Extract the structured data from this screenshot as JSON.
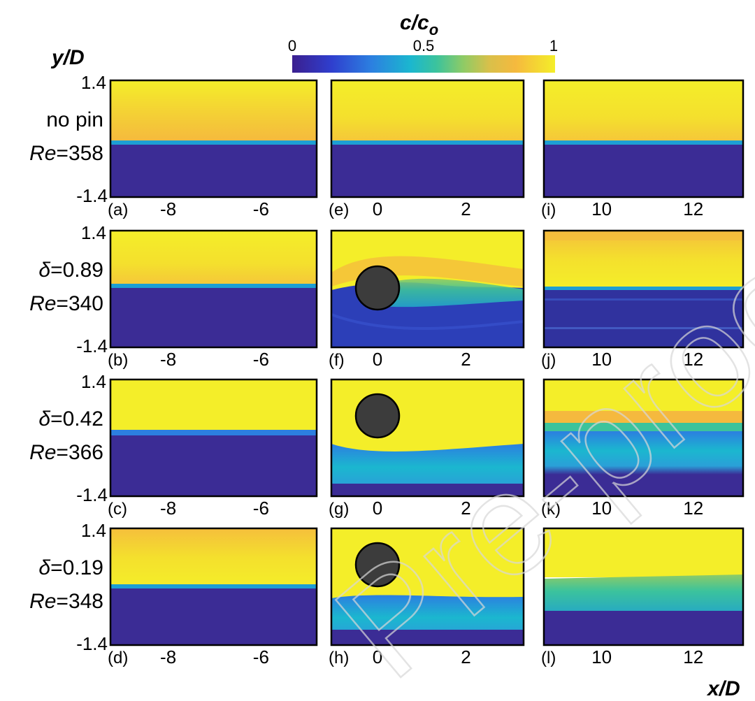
{
  "chart_data": {
    "type": "heatmap",
    "colorbar": {
      "label_main": "c/c",
      "label_sub": "o",
      "ticks": [
        "0",
        "0.5",
        "1"
      ],
      "range": [
        0,
        1
      ],
      "colormap": [
        "#3b1f8f",
        "#2f3fce",
        "#2c7fe0",
        "#1bb7cf",
        "#3cc39c",
        "#8ecb66",
        "#d9c04a",
        "#f5b93e",
        "#f4ee29"
      ]
    },
    "y_axis": {
      "label": "y/D",
      "ticks": [
        "1.4",
        "-1.4"
      ]
    },
    "x_axis": {
      "label": "x/D"
    },
    "columns": [
      {
        "ticks": [
          "-8",
          "-6"
        ]
      },
      {
        "ticks": [
          "0",
          "2"
        ]
      },
      {
        "ticks": [
          "10",
          "12"
        ]
      }
    ],
    "rows": [
      {
        "case_line1": "no pin",
        "case_line2_var": "Re",
        "case_line2_val": "=358",
        "panels": [
          "(a)",
          "(e)",
          "(i)"
        ],
        "pin": "none"
      },
      {
        "case_line1_var": "δ",
        "case_line1_val": "=0.89",
        "case_line2_var": "Re",
        "case_line2_val": "=340",
        "panels": [
          "(b)",
          "(f)",
          "(j)"
        ],
        "pin": "centre"
      },
      {
        "case_line1_var": "δ",
        "case_line1_val": "=0.42",
        "case_line2_var": "Re",
        "case_line2_val": "=366",
        "panels": [
          "(c)",
          "(g)",
          "(k)"
        ],
        "pin": "upper"
      },
      {
        "case_line1_var": "δ",
        "case_line1_val": "=0.19",
        "case_line2_var": "Re",
        "case_line2_val": "=348",
        "panels": [
          "(d)",
          "(h)",
          "(l)"
        ],
        "pin": "upper"
      }
    ],
    "watermark": "Pre-proofs",
    "colors": {
      "high": "#f4ee29",
      "orange": "#f5b93e",
      "low": "#3b2c95",
      "cyan": "#1bb7cf",
      "teal": "#3cc39c",
      "pin": "#3c3c3c"
    }
  }
}
